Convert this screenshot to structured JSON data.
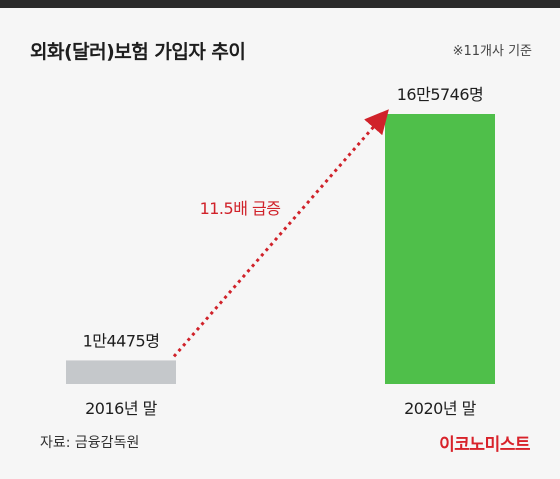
{
  "header": {
    "title": "외화(달러)보험 가입자 추이",
    "note": "※11개사 기준"
  },
  "footer": {
    "source": "자료: 금융감독원",
    "brand": "이코노미스트"
  },
  "colors": {
    "bar_2016": "#c5c8cb",
    "bar_2020": "#4fbf4a",
    "arrow": "#d0222a",
    "brand": "#d8222a",
    "background": "#f6f6f6"
  },
  "chart_data": {
    "type": "bar",
    "categories": [
      "2016년 말",
      "2020년 말"
    ],
    "values": [
      14475,
      165746
    ],
    "value_labels": [
      "1만4475명",
      "16만5746명"
    ],
    "annotation": "11.5배 급증",
    "ylim": [
      0,
      165746
    ],
    "grid": false
  }
}
